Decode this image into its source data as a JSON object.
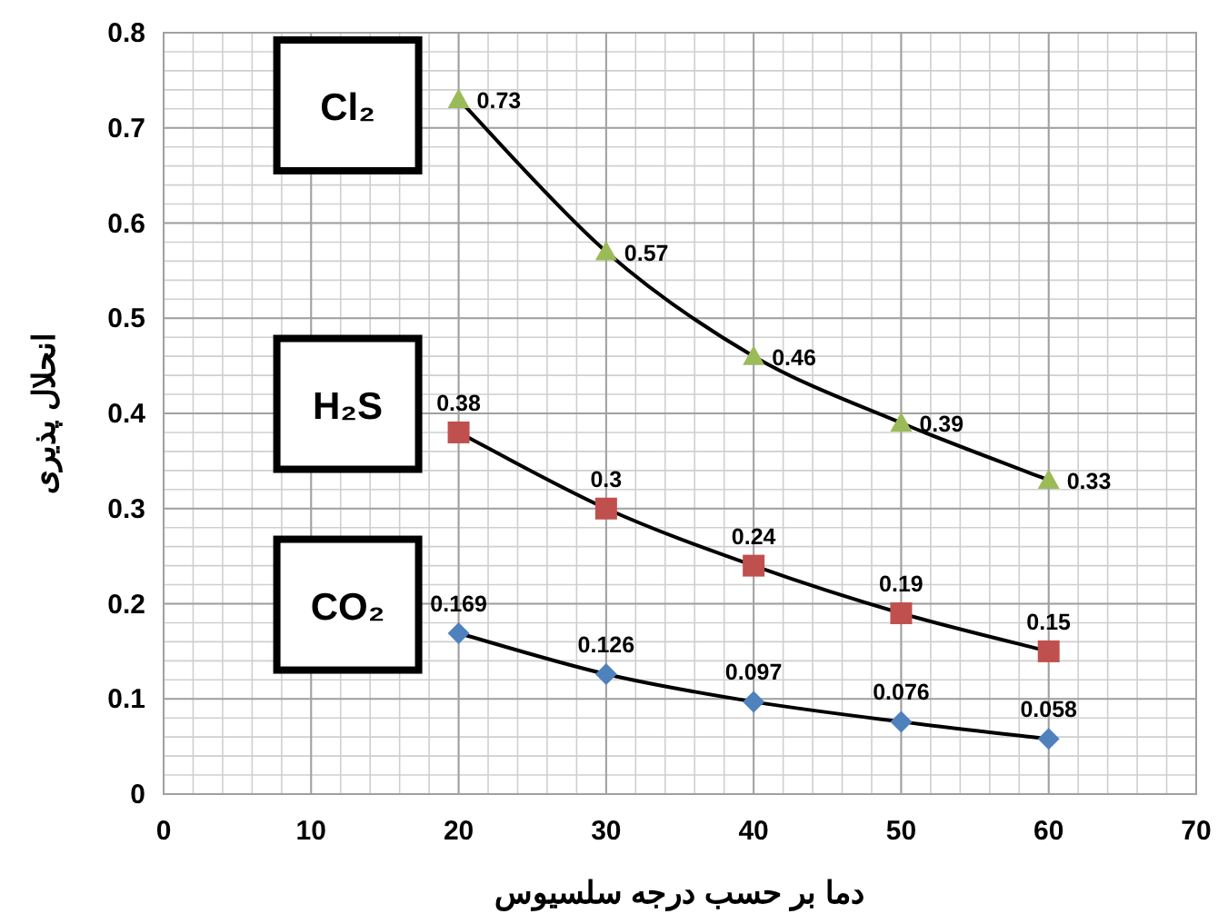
{
  "chart_data": {
    "type": "line",
    "xlabel": "دما بر حسب درجه سلسیوس",
    "ylabel": "انحلال پذیری",
    "x": [
      20,
      30,
      40,
      50,
      60
    ],
    "series": [
      {
        "name": "Cl₂",
        "color": "#9bbb59",
        "marker": "triangle",
        "values": [
          0.73,
          0.57,
          0.46,
          0.39,
          0.33
        ]
      },
      {
        "name": "H₂S",
        "color": "#c0504d",
        "marker": "square",
        "values": [
          0.38,
          0.3,
          0.24,
          0.19,
          0.15
        ]
      },
      {
        "name": "CO₂",
        "color": "#4f81bd",
        "marker": "diamond",
        "values": [
          0.169,
          0.126,
          0.097,
          0.076,
          0.058
        ]
      }
    ],
    "xlim": [
      0,
      70
    ],
    "xticks": [
      0,
      10,
      20,
      30,
      40,
      50,
      60,
      70
    ],
    "ylim": [
      0,
      0.8
    ],
    "yticks": [
      0,
      0.1,
      0.2,
      0.3,
      0.4,
      0.5,
      0.6,
      0.7,
      0.8
    ],
    "grid": true,
    "data_labels": true,
    "line_style": "solid"
  }
}
